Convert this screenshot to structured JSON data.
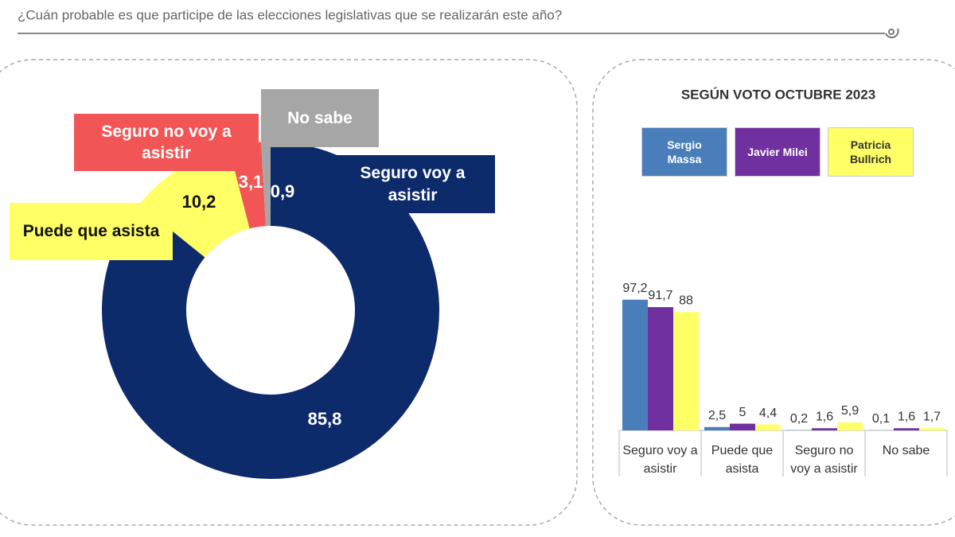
{
  "title": "¿Cuán probable es que participe de las elecciones legislativas que se realizarán este año?",
  "chart_data": [
    {
      "type": "donut",
      "categories": [
        "Seguro voy a asistir",
        "Puede que asista",
        "Seguro no voy a asistir",
        "No sabe"
      ],
      "values": [
        85.8,
        10.2,
        3.1,
        0.9
      ],
      "value_labels": [
        "85,8",
        "10,2",
        "3,1",
        "0,9"
      ],
      "colors": [
        "#0d2a6b",
        "#ffff66",
        "#f25555",
        "#a6a6a6"
      ]
    },
    {
      "type": "bar",
      "title": "SEGÚN VOTO OCTUBRE 2023",
      "categories": [
        "Seguro voy a asistir",
        "Puede que asista",
        "Seguro no voy a asistir",
        "No sabe"
      ],
      "series": [
        {
          "name": "Sergio Massa",
          "color": "#4a7ebb",
          "values": [
            97.2,
            2.5,
            0.2,
            0.1
          ],
          "value_labels": [
            "97,2",
            "2,5",
            "0,2",
            "0,1"
          ]
        },
        {
          "name": "Javier Milei",
          "color": "#7030a0",
          "values": [
            91.7,
            5,
            1.6,
            1.6
          ],
          "value_labels": [
            "91,7",
            "5",
            "1,6",
            "1,6"
          ]
        },
        {
          "name": "Patricia Bullrich",
          "color": "#ffff66",
          "values": [
            88,
            4.4,
            5.9,
            1.7
          ],
          "value_labels": [
            "88",
            "4,4",
            "5,9",
            "1,7"
          ]
        }
      ],
      "ylim": [
        0,
        100
      ]
    }
  ]
}
